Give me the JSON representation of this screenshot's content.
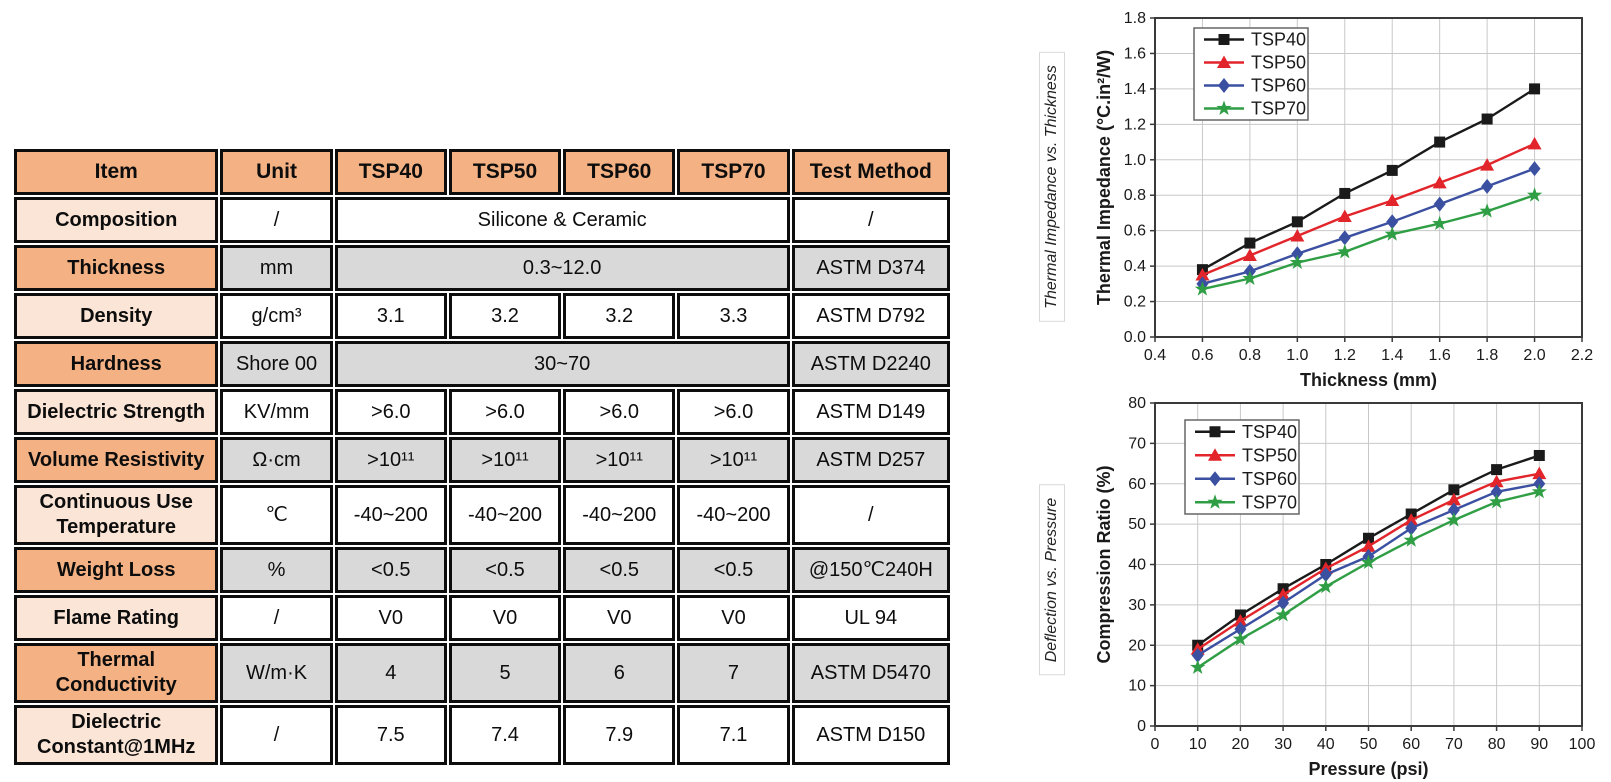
{
  "colors": {
    "header_orange": "#F4B183",
    "item_light": "#FBE5D6",
    "cell_gray": "#D9D9D9",
    "border_black": "#0d0d0d",
    "series_black": "#1a1a1a",
    "series_red": "#e2252b",
    "series_blue": "#3c50a2",
    "series_green": "#2f9e44",
    "gridline": "#c8c8c8"
  },
  "table": {
    "headers": [
      "Item",
      "Unit",
      "TSP40",
      "TSP50",
      "TSP60",
      "TSP70",
      "Test Method"
    ],
    "rows": [
      {
        "item": "Composition",
        "unit": "/",
        "merged": "Silicone & Ceramic",
        "method": "/"
      },
      {
        "item": "Thickness",
        "unit": "mm",
        "merged": "0.3~12.0",
        "method": "ASTM D374"
      },
      {
        "item": "Density",
        "unit": "g/cm³",
        "values": [
          "3.1",
          "3.2",
          "3.2",
          "3.3"
        ],
        "method": "ASTM D792"
      },
      {
        "item": "Hardness",
        "unit": "Shore 00",
        "merged": "30~70",
        "method": "ASTM D2240"
      },
      {
        "item": "Dielectric Strength",
        "unit": "KV/mm",
        "values": [
          ">6.0",
          ">6.0",
          ">6.0",
          ">6.0"
        ],
        "method": "ASTM D149"
      },
      {
        "item": "Volume Resistivity",
        "unit": "Ω·cm",
        "values": [
          ">10¹¹",
          ">10¹¹",
          ">10¹¹",
          ">10¹¹"
        ],
        "method": "ASTM D257"
      },
      {
        "item": "Continuous Use Temperature",
        "unit": "℃",
        "values": [
          "-40~200",
          "-40~200",
          "-40~200",
          "-40~200"
        ],
        "method": "/"
      },
      {
        "item": "Weight Loss",
        "unit": "%",
        "values": [
          "<0.5",
          "<0.5",
          "<0.5",
          "<0.5"
        ],
        "method": "@150℃240H"
      },
      {
        "item": "Flame Rating",
        "unit": "/",
        "values": [
          "V0",
          "V0",
          "V0",
          "V0"
        ],
        "method": "UL 94"
      },
      {
        "item": "Thermal Conductivity",
        "unit": "W/m·K",
        "values": [
          "4",
          "5",
          "6",
          "7"
        ],
        "method": "ASTM D5470"
      },
      {
        "item": "Dielectric Constant@1MHz",
        "unit": "/",
        "values": [
          "7.5",
          "7.4",
          "7.9",
          "7.1"
        ],
        "method": "ASTM D150"
      }
    ]
  },
  "chart_data": [
    {
      "type": "line",
      "caption": "Thermal Impedance vs. Thickness",
      "xlabel": "Thickness (mm)",
      "ylabel": "Thermal Impedance (°C.in²/W)",
      "xlim": [
        0.4,
        2.2
      ],
      "ylim": [
        0.0,
        1.8
      ],
      "xticks": [
        "0.4",
        "0.6",
        "0.8",
        "1.0",
        "1.2",
        "1.4",
        "1.6",
        "1.8",
        "2.0",
        "2.2"
      ],
      "yticks": [
        "0.0",
        "0.2",
        "0.4",
        "0.6",
        "0.8",
        "1.0",
        "1.2",
        "1.4",
        "1.6",
        "1.8"
      ],
      "x": [
        0.6,
        0.8,
        1.0,
        1.2,
        1.4,
        1.6,
        1.8,
        2.0
      ],
      "grid": true,
      "legend_position": "top-left",
      "series": [
        {
          "name": "TSP40",
          "color": "#1a1a1a",
          "marker": "square",
          "values": [
            0.38,
            0.53,
            0.65,
            0.81,
            0.94,
            1.1,
            1.23,
            1.4
          ]
        },
        {
          "name": "TSP50",
          "color": "#e2252b",
          "marker": "triangle",
          "values": [
            0.35,
            0.46,
            0.57,
            0.68,
            0.77,
            0.87,
            0.97,
            1.09
          ]
        },
        {
          "name": "TSP60",
          "color": "#3c50a2",
          "marker": "diamond",
          "values": [
            0.3,
            0.37,
            0.47,
            0.56,
            0.65,
            0.75,
            0.85,
            0.95
          ]
        },
        {
          "name": "TSP70",
          "color": "#2f9e44",
          "marker": "star",
          "values": [
            0.27,
            0.33,
            0.42,
            0.48,
            0.58,
            0.64,
            0.71,
            0.8
          ]
        }
      ]
    },
    {
      "type": "line",
      "caption": "Deflection vs. Pressure",
      "xlabel": "Pressure (psi)",
      "ylabel": "Compression Ratio (%)",
      "xlim": [
        0,
        100
      ],
      "ylim": [
        0,
        80
      ],
      "xticks": [
        "0",
        "10",
        "20",
        "30",
        "40",
        "50",
        "60",
        "70",
        "80",
        "90",
        "100"
      ],
      "yticks": [
        "0",
        "10",
        "20",
        "30",
        "40",
        "50",
        "60",
        "70",
        "80"
      ],
      "x": [
        10,
        20,
        30,
        40,
        50,
        60,
        70,
        80,
        90
      ],
      "grid": true,
      "legend_position": "top-left",
      "series": [
        {
          "name": "TSP40",
          "color": "#1a1a1a",
          "marker": "square",
          "values": [
            20,
            27.5,
            34,
            40,
            46.5,
            52.5,
            58.5,
            63.5,
            67
          ]
        },
        {
          "name": "TSP50",
          "color": "#e2252b",
          "marker": "triangle",
          "values": [
            19,
            26,
            32.5,
            39,
            44.5,
            51,
            56,
            60.5,
            62.5
          ]
        },
        {
          "name": "TSP60",
          "color": "#3c50a2",
          "marker": "diamond",
          "values": [
            17.5,
            24,
            30.5,
            37.5,
            42,
            49,
            53.5,
            58,
            60
          ]
        },
        {
          "name": "TSP70",
          "color": "#2f9e44",
          "marker": "star",
          "values": [
            14.5,
            21.5,
            27.5,
            34.5,
            40.5,
            46,
            51,
            55.5,
            58
          ]
        }
      ]
    }
  ]
}
